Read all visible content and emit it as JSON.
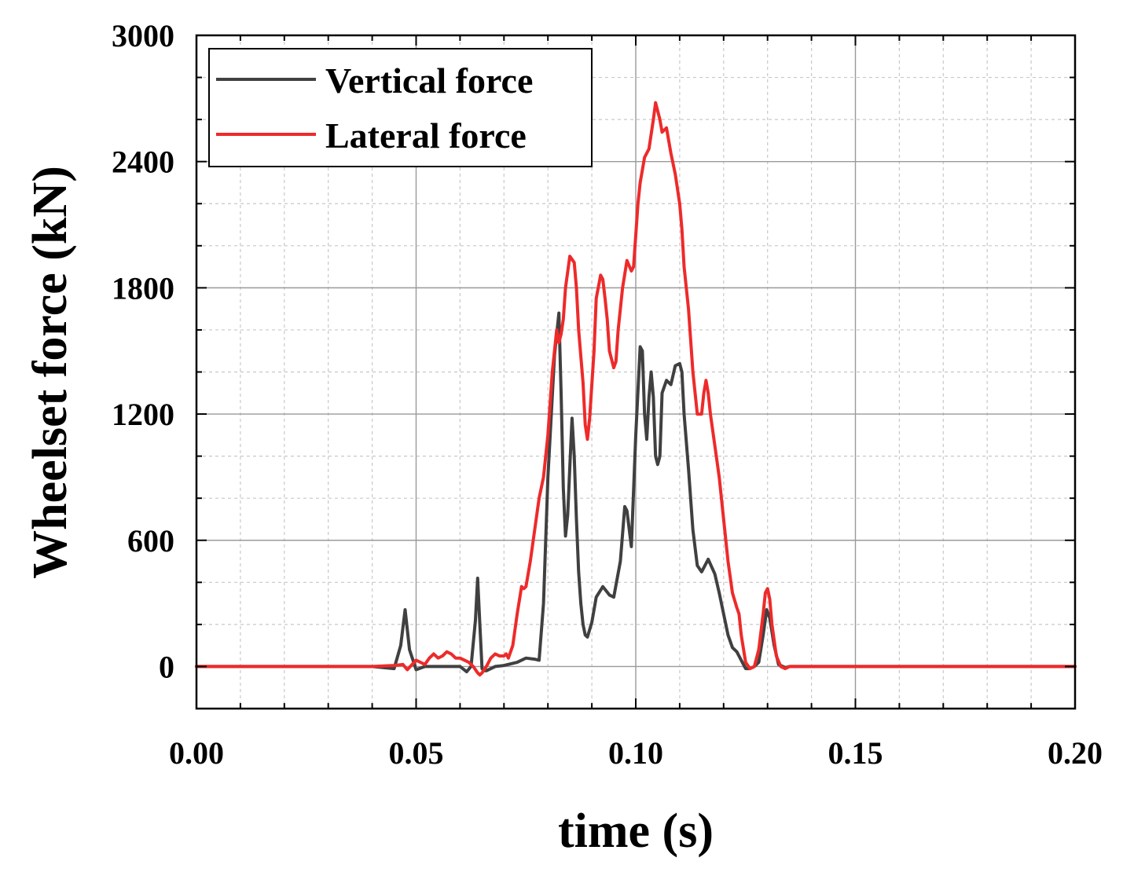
{
  "chart_data": {
    "type": "line",
    "title": "",
    "xlabel": "time (s)",
    "ylabel": "Wheelset force (kN)",
    "xlim": [
      0.0,
      0.2
    ],
    "ylim": [
      -200,
      3000
    ],
    "xticks": [
      0.0,
      0.05,
      0.1,
      0.15,
      0.2
    ],
    "xtick_labels": [
      "0.00",
      "0.05",
      "0.10",
      "0.15",
      "0.20"
    ],
    "yticks": [
      0,
      600,
      1200,
      1800,
      2400,
      3000
    ],
    "ytick_labels": [
      "0",
      "600",
      "1200",
      "1800",
      "2400",
      "3000"
    ],
    "grid": true,
    "legend_position": "top-left",
    "series": [
      {
        "name": "Vertical force",
        "color": "#404040",
        "x": [
          0.0,
          0.04,
          0.045,
          0.0465,
          0.0475,
          0.0485,
          0.05,
          0.052,
          0.055,
          0.06,
          0.0615,
          0.0625,
          0.0635,
          0.064,
          0.0645,
          0.065,
          0.0655,
          0.066,
          0.068,
          0.07,
          0.073,
          0.075,
          0.077,
          0.078,
          0.079,
          0.08,
          0.0815,
          0.0825,
          0.083,
          0.0835,
          0.084,
          0.0845,
          0.085,
          0.0855,
          0.086,
          0.0865,
          0.087,
          0.0875,
          0.088,
          0.0885,
          0.089,
          0.09,
          0.091,
          0.0925,
          0.094,
          0.095,
          0.0965,
          0.0975,
          0.098,
          0.099,
          0.1,
          0.101,
          0.1015,
          0.102,
          0.1025,
          0.103,
          0.1035,
          0.104,
          0.1045,
          0.105,
          0.1055,
          0.106,
          0.107,
          0.108,
          0.109,
          0.11,
          0.1105,
          0.111,
          0.112,
          0.113,
          0.114,
          0.115,
          0.1165,
          0.118,
          0.119,
          0.12,
          0.121,
          0.122,
          0.123,
          0.124,
          0.125,
          0.126,
          0.127,
          0.128,
          0.129,
          0.1298,
          0.1305,
          0.1315,
          0.1325,
          0.1335,
          0.134,
          0.135,
          0.2
        ],
        "values": [
          0,
          0,
          -10,
          100,
          270,
          80,
          -15,
          0,
          0,
          0,
          -25,
          0,
          220,
          420,
          200,
          -10,
          -20,
          -20,
          0,
          5,
          20,
          40,
          35,
          30,
          300,
          900,
          1480,
          1680,
          1300,
          850,
          620,
          720,
          950,
          1180,
          1000,
          700,
          450,
          300,
          200,
          150,
          140,
          210,
          330,
          380,
          340,
          330,
          500,
          760,
          740,
          570,
          1100,
          1520,
          1500,
          1200,
          1080,
          1280,
          1400,
          1280,
          1000,
          960,
          1000,
          1300,
          1360,
          1340,
          1430,
          1440,
          1400,
          1200,
          940,
          650,
          480,
          450,
          510,
          440,
          350,
          250,
          150,
          90,
          70,
          30,
          -10,
          -10,
          0,
          20,
          150,
          270,
          230,
          100,
          10,
          0,
          -5,
          0,
          0
        ]
      },
      {
        "name": "Lateral force",
        "color": "#ee2a2a",
        "x": [
          0.0,
          0.04,
          0.045,
          0.047,
          0.048,
          0.05,
          0.052,
          0.053,
          0.054,
          0.055,
          0.056,
          0.057,
          0.058,
          0.059,
          0.06,
          0.062,
          0.063,
          0.064,
          0.0645,
          0.065,
          0.066,
          0.067,
          0.068,
          0.069,
          0.07,
          0.0705,
          0.071,
          0.072,
          0.073,
          0.074,
          0.0745,
          0.075,
          0.076,
          0.077,
          0.078,
          0.079,
          0.08,
          0.081,
          0.082,
          0.0825,
          0.083,
          0.0835,
          0.084,
          0.085,
          0.086,
          0.0865,
          0.087,
          0.088,
          0.0885,
          0.089,
          0.0895,
          0.0905,
          0.091,
          0.092,
          0.0925,
          0.093,
          0.0935,
          0.094,
          0.095,
          0.0955,
          0.096,
          0.097,
          0.098,
          0.099,
          0.0995,
          0.1005,
          0.101,
          0.102,
          0.103,
          0.104,
          0.1045,
          0.1055,
          0.106,
          0.107,
          0.108,
          0.109,
          0.11,
          0.1105,
          0.111,
          0.112,
          0.113,
          0.114,
          0.115,
          0.1155,
          0.116,
          0.1165,
          0.117,
          0.118,
          0.119,
          0.12,
          0.121,
          0.122,
          0.123,
          0.1235,
          0.124,
          0.125,
          0.126,
          0.127,
          0.128,
          0.129,
          0.1295,
          0.13,
          0.1305,
          0.131,
          0.132,
          0.133,
          0.134,
          0.135,
          0.2
        ],
        "values": [
          0,
          0,
          5,
          10,
          -15,
          30,
          10,
          40,
          60,
          40,
          50,
          70,
          60,
          40,
          40,
          20,
          0,
          -30,
          -40,
          -30,
          0,
          40,
          60,
          50,
          50,
          60,
          40,
          100,
          250,
          380,
          370,
          380,
          500,
          650,
          800,
          900,
          1100,
          1400,
          1600,
          1540,
          1580,
          1650,
          1800,
          1950,
          1920,
          1800,
          1600,
          1350,
          1150,
          1080,
          1180,
          1500,
          1750,
          1860,
          1840,
          1750,
          1650,
          1500,
          1420,
          1450,
          1600,
          1800,
          1930,
          1880,
          1900,
          2200,
          2300,
          2420,
          2460,
          2600,
          2680,
          2600,
          2540,
          2560,
          2440,
          2340,
          2200,
          2080,
          1900,
          1700,
          1400,
          1200,
          1200,
          1300,
          1360,
          1300,
          1200,
          1050,
          900,
          700,
          500,
          350,
          280,
          250,
          150,
          20,
          -10,
          0,
          80,
          250,
          350,
          370,
          320,
          200,
          50,
          0,
          -10,
          0,
          0
        ]
      }
    ]
  }
}
